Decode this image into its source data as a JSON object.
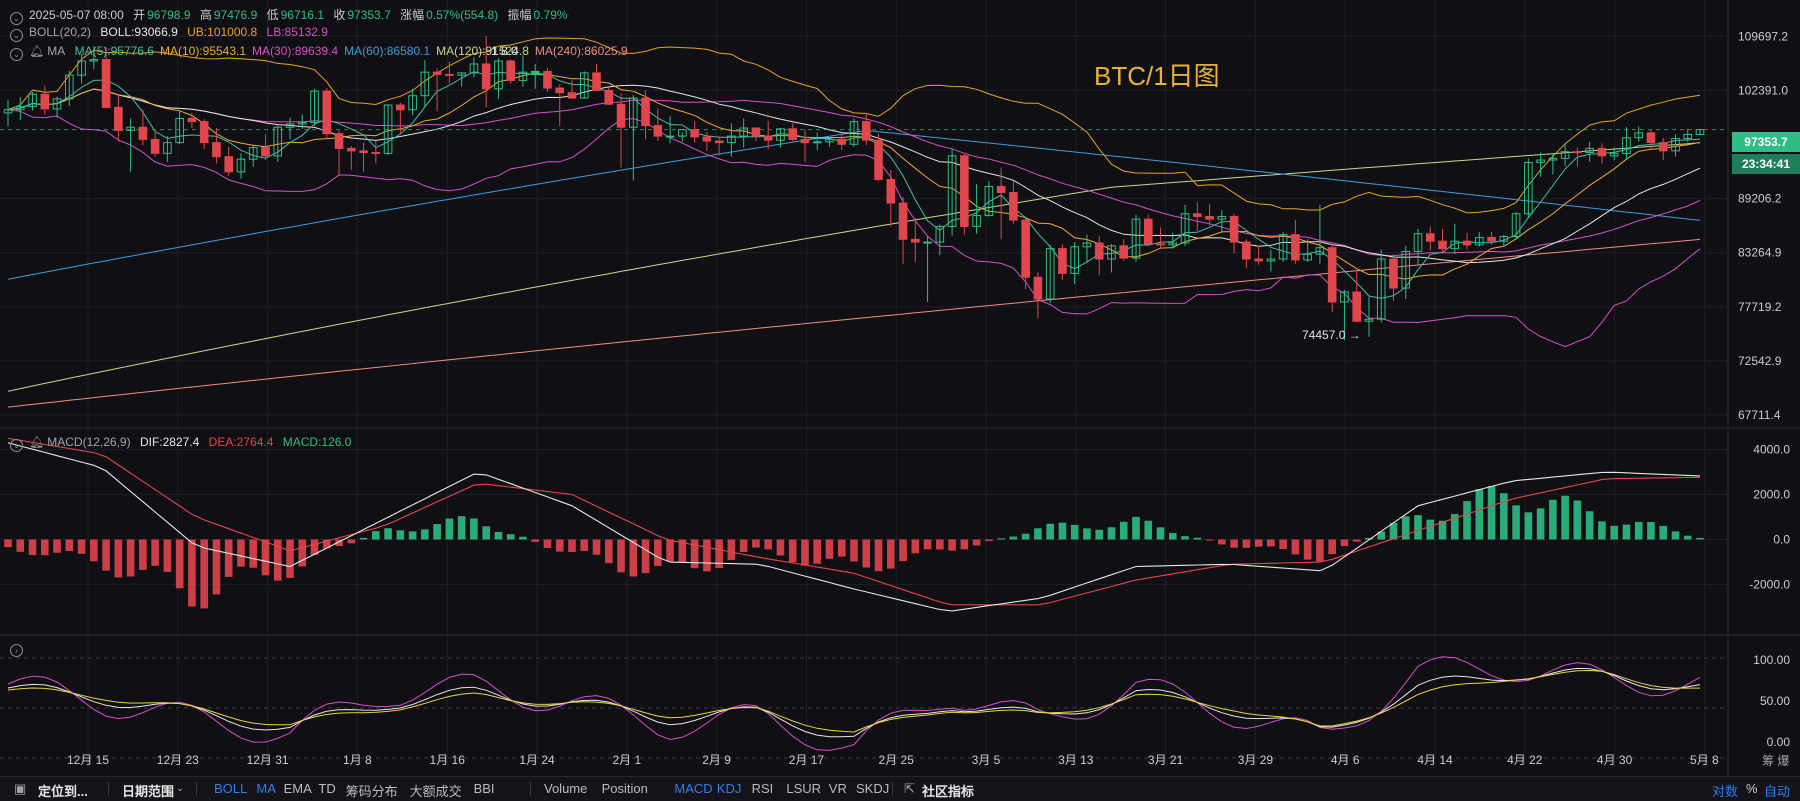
{
  "header": {
    "line1": {
      "datetime": "2025-05-07 08:00",
      "open_label": "开",
      "open": "96798.9",
      "high_label": "高",
      "high": "97476.9",
      "low_label": "低",
      "low": "96716.1",
      "close_label": "收",
      "close": "97353.7",
      "change_label": "涨幅",
      "change": "0.57%(554.8)",
      "amplitude_label": "振幅",
      "amplitude": "0.79%"
    },
    "boll": {
      "name": "BOLL(20,2)",
      "mid": "BOLL:93066.9",
      "ub": "UB:101000.8",
      "lb": "LB:85132.9"
    },
    "ma": {
      "name": "MA",
      "items": [
        {
          "text": "MA(5):95776.6",
          "color": "#3fbfa6"
        },
        {
          "text": "MA(10):95543.1",
          "color": "#f0a92a"
        },
        {
          "text": "MA(30):89639.4",
          "color": "#d94fc6"
        },
        {
          "text": "MA(60):86580.1",
          "color": "#3a9de0"
        },
        {
          "text": "MA(120):91524.8",
          "color": "#c6d98a"
        },
        {
          "text": "MA(240):86025.9",
          "color": "#f08c7e"
        }
      ]
    },
    "chart_title": "BTC/1日图"
  },
  "price_axis": [
    "109697.2",
    "102391.0",
    "89206.2",
    "83264.9",
    "77719.2",
    "72542.9",
    "67711.4"
  ],
  "last_price_tag": "97353.7",
  "countdown_tag": "23:34:41",
  "low_annotation": "74457.0",
  "high_annotation_partial": "1 8.0",
  "macd": {
    "name": "MACD(12,26,9)",
    "dif": "DIF:2827.4",
    "dea": "DEA:2764.4",
    "macd": "MACD:126.0"
  },
  "macd_axis": [
    "4000.0",
    "2000.0",
    "0.0",
    "-2000.0"
  ],
  "kdj_axis": [
    "100.00",
    "50.00",
    "0.00"
  ],
  "date_axis": [
    "12月 15",
    "12月 23",
    "12月 31",
    "1月 8",
    "1月 16",
    "1月 24",
    "2月 1",
    "2月 9",
    "2月 17",
    "2月 25",
    "3月 5",
    "3月 13",
    "3月 21",
    "3月 29",
    "4月 6",
    "4月 14",
    "4月 22",
    "4月 30",
    "5月 8"
  ],
  "axis_corner": "筹  爆",
  "toolbar": {
    "locate": "定位到...",
    "range": "日期范围",
    "indicators_main": [
      "BOLL",
      "MA",
      "EMA",
      "TD",
      "筹码分布",
      "大额成交",
      "BBI"
    ],
    "indicators_sub": [
      "Volume",
      "Position",
      "MACD",
      "KDJ",
      "RSI",
      "LSUR",
      "VR",
      "SKDJ"
    ],
    "community": "社区指标",
    "log": "对数",
    "percent": "%",
    "auto": "自动"
  },
  "colors": {
    "up": "#2ebd85",
    "down": "#e0464e",
    "bg": "#101014",
    "grid": "#1d1e24",
    "boll_mid": "#e6e6e6",
    "boll_ub": "#e8a319",
    "boll_lb": "#d64fc7",
    "macd_dif": "#e6e6e6",
    "macd_dea": "#e0464e",
    "kdj_k": "#e6e6e6",
    "kdj_d": "#e8d43a",
    "kdj_j": "#d64fc7",
    "title": "#e8b13c",
    "tag_price": "#2ebd85",
    "tag_timer": "#1f7f5a"
  },
  "chart_data": [
    {
      "type": "candlestick",
      "title": "BTC/1日图",
      "x_range": [
        "2024-12-09",
        "2025-05-07"
      ],
      "ylim": [
        67711.4,
        112000
      ],
      "ohlc_series_daily_from_2024-12-09": [
        [
          99500,
          101200,
          97800,
          99900
        ],
        [
          99900,
          101500,
          98600,
          100300
        ],
        [
          100300,
          102200,
          99800,
          101900
        ],
        [
          101900,
          103000,
          99300,
          100000
        ],
        [
          100000,
          101600,
          98900,
          101300
        ],
        [
          101300,
          105000,
          100400,
          104400
        ],
        [
          104400,
          107200,
          103300,
          106300
        ],
        [
          106300,
          108300,
          105200,
          106500
        ],
        [
          106500,
          108200,
          100100,
          100200
        ],
        [
          100200,
          101900,
          95900,
          97300
        ],
        [
          97300,
          98800,
          92300,
          97700
        ],
        [
          97700,
          99900,
          95500,
          96200
        ],
        [
          96200,
          97200,
          94100,
          94500
        ],
        [
          94500,
          96600,
          93500,
          95800
        ],
        [
          95800,
          99800,
          95600,
          98800
        ],
        [
          98800,
          99500,
          97600,
          98400
        ],
        [
          98400,
          98700,
          95000,
          95800
        ],
        [
          95800,
          97600,
          93300,
          94100
        ],
        [
          94100,
          95300,
          91800,
          92300
        ],
        [
          92300,
          94500,
          91500,
          93800
        ],
        [
          93800,
          95500,
          92900,
          95200
        ],
        [
          95200,
          96800,
          93700,
          94200
        ],
        [
          94200,
          97900,
          93500,
          97700
        ],
        [
          97700,
          98900,
          96200,
          98100
        ],
        [
          98100,
          99300,
          97500,
          98300
        ],
        [
          98300,
          102600,
          97900,
          102300
        ],
        [
          102300,
          102700,
          96200,
          96900
        ],
        [
          96900,
          97300,
          91800,
          95100
        ],
        [
          95100,
          95400,
          92500,
          94800
        ],
        [
          94800,
          95800,
          92300,
          94600
        ],
        [
          94600,
          96000,
          93300,
          94500
        ],
        [
          94500,
          100600,
          94300,
          100500
        ],
        [
          100500,
          100800,
          96900,
          99900
        ],
        [
          99900,
          102600,
          99200,
          101700
        ],
        [
          101700,
          106400,
          100300,
          104800
        ],
        [
          104800,
          105300,
          99700,
          104500
        ],
        [
          104500,
          106200,
          103300,
          104400
        ],
        [
          104400,
          104700,
          102900,
          104700
        ],
        [
          104700,
          106800,
          104100,
          105900
        ],
        [
          105900,
          109700,
          100200,
          102600
        ],
        [
          102600,
          106700,
          101300,
          106300
        ],
        [
          106300,
          106500,
          103300,
          103700
        ],
        [
          103700,
          107100,
          102900,
          104800
        ],
        [
          104800,
          105900,
          102600,
          104900
        ],
        [
          104900,
          105400,
          102200,
          102700
        ],
        [
          102700,
          103200,
          97800,
          102100
        ],
        [
          102100,
          103700,
          101300,
          101400
        ],
        [
          101400,
          104900,
          101400,
          104700
        ],
        [
          104700,
          105900,
          103500,
          102400
        ],
        [
          102400,
          102800,
          100500,
          100600
        ],
        [
          100600,
          102000,
          92800,
          97700
        ],
        [
          97700,
          101800,
          91300,
          101400
        ],
        [
          101400,
          102400,
          96200,
          97900
        ],
        [
          97900,
          100100,
          96000,
          96600
        ],
        [
          96600,
          99100,
          95700,
          96600
        ],
        [
          96600,
          97000,
          95900,
          97400
        ],
        [
          97400,
          98400,
          95800,
          96500
        ],
        [
          96500,
          97100,
          94800,
          96000
        ],
        [
          96000,
          96600,
          94300,
          95800
        ],
        [
          95800,
          98200,
          94100,
          96600
        ],
        [
          96600,
          98800,
          95200,
          97600
        ],
        [
          97600,
          97700,
          96000,
          96600
        ],
        [
          96600,
          98500,
          95000,
          96100
        ],
        [
          96100,
          97600,
          95200,
          97500
        ],
        [
          97500,
          98200,
          96000,
          96200
        ],
        [
          96200,
          97400,
          93500,
          95800
        ],
        [
          95800,
          97000,
          94900,
          95900
        ],
        [
          95900,
          96500,
          95300,
          96200
        ],
        [
          96200,
          96800,
          94900,
          95600
        ],
        [
          95600,
          98800,
          95300,
          98400
        ],
        [
          98400,
          99500,
          95500,
          96100
        ],
        [
          96100,
          96900,
          91200,
          91400
        ],
        [
          91400,
          92500,
          86100,
          88700
        ],
        [
          88700,
          89400,
          82100,
          84700
        ],
        [
          84700,
          87000,
          82300,
          84400
        ],
        [
          84400,
          85100,
          78200,
          84400
        ],
        [
          84400,
          86300,
          83000,
          86100
        ],
        [
          86100,
          95000,
          85100,
          94200
        ],
        [
          94200,
          94400,
          85200,
          86100
        ],
        [
          86100,
          90900,
          85300,
          87300
        ],
        [
          87300,
          91200,
          87200,
          90600
        ],
        [
          90600,
          92800,
          84700,
          89900
        ],
        [
          89900,
          91200,
          86400,
          86800
        ],
        [
          86800,
          87000,
          79500,
          80700
        ],
        [
          80700,
          81200,
          76600,
          78500
        ],
        [
          78500,
          84100,
          78100,
          83700
        ],
        [
          83700,
          84200,
          80400,
          81100
        ],
        [
          81100,
          84400,
          80000,
          83900
        ],
        [
          83900,
          85200,
          82200,
          84300
        ],
        [
          84300,
          85100,
          80900,
          82600
        ],
        [
          82600,
          84200,
          81200,
          84000
        ],
        [
          84000,
          84700,
          82400,
          82700
        ],
        [
          82700,
          87400,
          82300,
          86900
        ],
        [
          86900,
          87400,
          84100,
          84200
        ],
        [
          84200,
          86000,
          83800,
          84100
        ],
        [
          84100,
          85400,
          83700,
          84300
        ],
        [
          84300,
          88500,
          84000,
          87500
        ],
        [
          87500,
          88800,
          85600,
          87200
        ],
        [
          87200,
          88600,
          86200,
          86900
        ],
        [
          86900,
          87900,
          85500,
          87200
        ],
        [
          87200,
          87500,
          83200,
          84400
        ],
        [
          84400,
          84700,
          81600,
          82600
        ],
        [
          82600,
          84000,
          82000,
          82400
        ],
        [
          82400,
          83600,
          81300,
          82600
        ],
        [
          82600,
          85500,
          82300,
          85200
        ],
        [
          85200,
          86800,
          82100,
          82500
        ],
        [
          82500,
          84700,
          82300,
          83100
        ],
        [
          83100,
          88500,
          82100,
          83800
        ],
        [
          83800,
          84200,
          77200,
          78200
        ],
        [
          78200,
          79400,
          74500,
          79200
        ],
        [
          79200,
          81300,
          76200,
          76300
        ],
        [
          76300,
          78700,
          74800,
          76500
        ],
        [
          76500,
          83600,
          76200,
          82600
        ],
        [
          82600,
          83100,
          78300,
          79600
        ],
        [
          79600,
          84000,
          78500,
          83400
        ],
        [
          83400,
          85800,
          82000,
          85300
        ],
        [
          85300,
          86100,
          83500,
          84500
        ],
        [
          84500,
          85800,
          83200,
          83700
        ],
        [
          83700,
          86400,
          83100,
          84500
        ],
        [
          84500,
          85400,
          83600,
          84100
        ],
        [
          84100,
          85500,
          83900,
          84900
        ],
        [
          84900,
          85500,
          84100,
          84500
        ],
        [
          84500,
          85200,
          84000,
          85000
        ],
        [
          85000,
          87700,
          84800,
          87500
        ],
        [
          87500,
          93900,
          87000,
          93400
        ],
        [
          93400,
          94600,
          91700,
          93700
        ],
        [
          93700,
          94500,
          92000,
          93900
        ],
        [
          93900,
          95700,
          93000,
          94700
        ],
        [
          94700,
          95200,
          92900,
          94600
        ],
        [
          94600,
          95900,
          93500,
          95100
        ],
        [
          95100,
          95700,
          93300,
          94200
        ],
        [
          94200,
          95200,
          93700,
          94500
        ],
        [
          94500,
          97700,
          93700,
          96400
        ],
        [
          96400,
          97800,
          95900,
          97000
        ],
        [
          97000,
          97400,
          94900,
          95800
        ],
        [
          95800,
          96400,
          93700,
          94800
        ],
        [
          94800,
          96800,
          94100,
          96300
        ],
        [
          96300,
          97500,
          95900,
          96800
        ],
        [
          96800,
          97500,
          96700,
          97400
        ]
      ]
    },
    {
      "type": "line",
      "title": "MACD(12,26,9)",
      "series": [
        {
          "name": "DIF",
          "values": [
            4300,
            3200,
            -300,
            -1200,
            900,
            3000,
            1500,
            -1000,
            -1100,
            -2200,
            -3200,
            -2600,
            -1200,
            -1100,
            -1400,
            1500,
            2600,
            3000,
            2827
          ]
        },
        {
          "name": "DEA",
          "values": [
            4500,
            3800,
            1000,
            -500,
            600,
            2500,
            2000,
            0,
            -800,
            -1500,
            -2900,
            -2900,
            -1800,
            -1100,
            -1000,
            400,
            1800,
            2700,
            2764
          ]
        },
        {
          "name": "MACD",
          "values": [
            -400,
            -1200,
            -2800,
            -1500,
            500,
            1000,
            -800,
            -1800,
            -600,
            -1500,
            -600,
            600,
            900,
            -300,
            -900,
            1200,
            2400,
            1200,
            126
          ]
        }
      ],
      "categories": [
        "12月 15",
        "12月 23",
        "12月 31",
        "1月 8",
        "1月 16",
        "1月 24",
        "2月 1",
        "2月 9",
        "2月 17",
        "2月 25",
        "3月 5",
        "3月 13",
        "3月 21",
        "3月 29",
        "4月 6",
        "4月 14",
        "4月 22",
        "4月 30",
        "5月 8"
      ],
      "ylim": [
        -3800,
        4200
      ]
    },
    {
      "type": "line",
      "title": "KDJ",
      "series": [
        {
          "name": "K",
          "values": [
            70,
            60,
            45,
            30,
            55,
            65,
            55,
            40,
            45,
            20,
            55,
            40,
            65,
            50,
            25,
            70,
            85,
            82,
            70
          ]
        },
        {
          "name": "D",
          "values": [
            68,
            62,
            48,
            33,
            50,
            62,
            55,
            44,
            47,
            25,
            50,
            42,
            62,
            52,
            28,
            62,
            82,
            84,
            68
          ]
        },
        {
          "name": "J",
          "values": [
            74,
            56,
            39,
            24,
            65,
            71,
            55,
            32,
            41,
            10,
            65,
            36,
            71,
            46,
            19,
            86,
            91,
            78,
            74
          ]
        }
      ],
      "categories": [
        "12月 15",
        "12月 23",
        "12月 31",
        "1月 8",
        "1月 16",
        "1月 24",
        "2月 1",
        "2月 9",
        "2月 17",
        "2月 25",
        "3月 5",
        "3月 13",
        "3月 21",
        "3月 29",
        "4月 6",
        "4月 14",
        "4月 22",
        "4月 30",
        "5月 8"
      ],
      "ylim": [
        0,
        100
      ]
    }
  ]
}
